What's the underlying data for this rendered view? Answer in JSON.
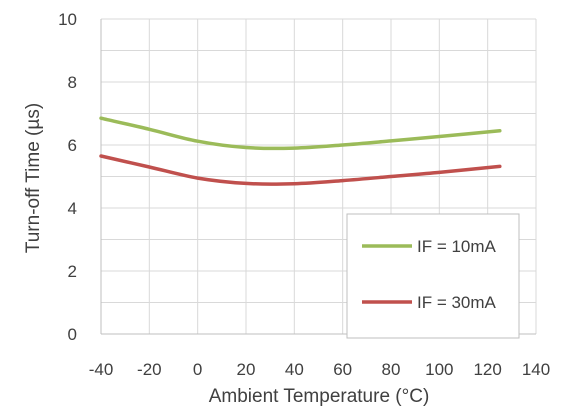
{
  "chart_data": {
    "type": "line",
    "title": "",
    "xlabel": "Ambient Temperature (°C)",
    "ylabel": "Turn-off Time (µs)",
    "xlim": [
      -40,
      140
    ],
    "ylim": [
      0,
      10
    ],
    "x_ticks": [
      "-40",
      "-20",
      "0",
      "20",
      "40",
      "60",
      "80",
      "100",
      "120",
      "140"
    ],
    "y_ticks": [
      "0",
      "2",
      "4",
      "6",
      "8",
      "10"
    ],
    "grid": true,
    "legend_position": "bottom-right",
    "series": [
      {
        "name": "IF = 10mA",
        "color": "#9bbb59",
        "x": [
          -40,
          -20,
          0,
          20,
          40,
          60,
          80,
          100,
          125
        ],
        "y": [
          6.85,
          6.5,
          6.12,
          5.92,
          5.9,
          6.0,
          6.13,
          6.27,
          6.45
        ]
      },
      {
        "name": "IF = 30mA",
        "color": "#c0504d",
        "x": [
          -40,
          -20,
          0,
          20,
          40,
          60,
          80,
          100,
          125
        ],
        "y": [
          5.65,
          5.3,
          4.95,
          4.78,
          4.77,
          4.87,
          5.0,
          5.13,
          5.32
        ]
      }
    ]
  }
}
